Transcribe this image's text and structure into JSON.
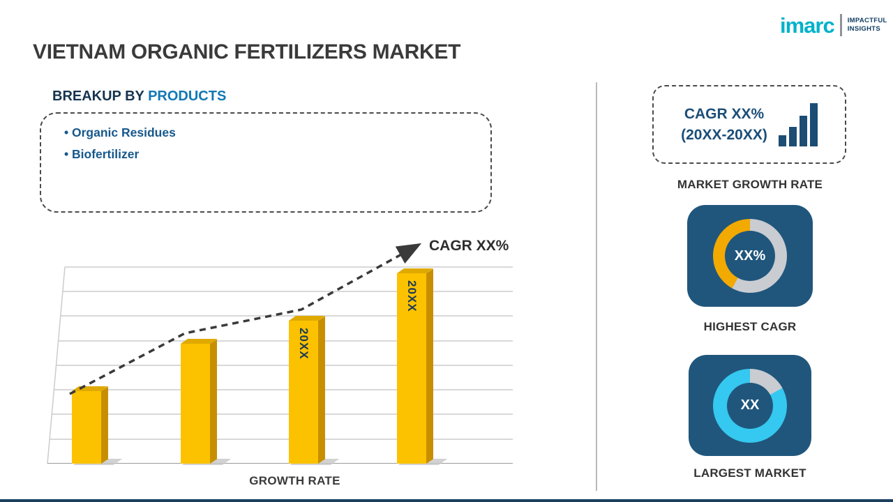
{
  "page": {
    "title": "VIETNAM ORGANIC FERTILIZERS MARKET",
    "bottom_bar_color": "#1b3f5e"
  },
  "logo": {
    "brand": "imarc",
    "tagline_line1": "IMPACTFUL",
    "tagline_line2": "INSIGHTS",
    "brand_color": "#00b2cb"
  },
  "breakup": {
    "heading_prefix": "BREAKUP BY ",
    "heading_highlight": "PRODUCTS",
    "items": [
      "Organic Residues",
      "Biofertilizer"
    ]
  },
  "chart_data": {
    "type": "bar",
    "title": "GROWTH RATE",
    "xlabel": "GROWTH RATE",
    "ylabel": "",
    "categories": [
      "",
      "",
      "20XX",
      "20XX"
    ],
    "values": [
      2.0,
      3.3,
      3.95,
      5.25
    ],
    "value_note": "axis unlabeled - relative bar heights estimated from pixels",
    "bar_color": "#fcc200",
    "grid": true,
    "trend_label": "CAGR XX%",
    "trend_style": "dashed rising arrow"
  },
  "right_panel": {
    "growth_box": {
      "line1": "CAGR XX%",
      "line2": "(20XX-20XX)"
    },
    "growth_box_caption": "MARKET GROWTH RATE",
    "card_color": "#20567c",
    "highest_cagr": {
      "center_label": "XX%",
      "caption": "HIGHEST CAGR",
      "ring_color": "#f2a900",
      "ring_bg": "#c9ccd1",
      "segment_pct": 42
    },
    "largest_market": {
      "center_label": "XX",
      "caption": "LARGEST MARKET",
      "ring_color": "#35c8f0",
      "ring_bg": "#c9ccd1",
      "segment_pct": 83
    }
  }
}
